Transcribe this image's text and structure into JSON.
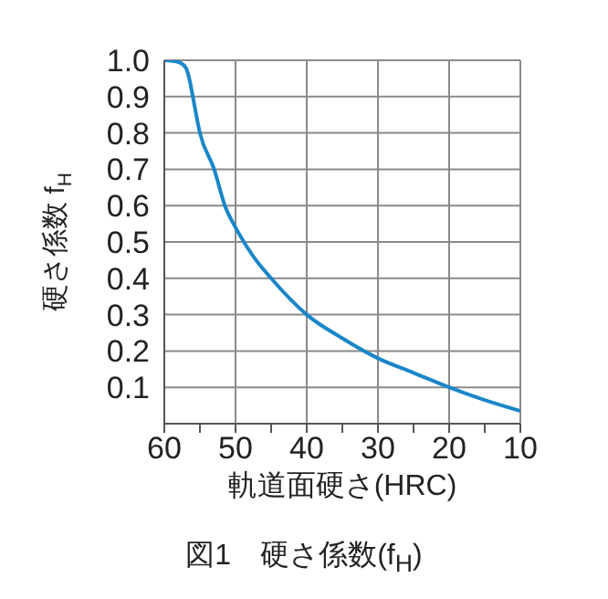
{
  "chart_data": {
    "type": "line",
    "title": "図1　硬さ係数(f$_{H}$)",
    "xlabel": "軌道面硬さ(HRC)",
    "ylabel": "硬さ係数 f$_{H}$",
    "x": [
      60,
      58,
      57,
      56.5,
      56,
      55,
      53,
      51.5,
      50,
      47.5,
      45,
      40,
      35,
      30,
      25,
      20,
      15,
      10
    ],
    "series": [
      {
        "color": "#1a86c8",
        "values": [
          1.0,
          0.995,
          0.98,
          0.95,
          0.9,
          0.8,
          0.7,
          0.6,
          0.54,
          0.46,
          0.4,
          0.3,
          0.235,
          0.18,
          0.14,
          0.1,
          0.065,
          0.035
        ]
      }
    ],
    "xlim": [
      60,
      10
    ],
    "xticks": [
      60,
      {
        "value": 55,
        "label": null
      },
      50,
      {
        "value": 45,
        "label": null
      },
      40,
      {
        "value": 35,
        "label": null
      },
      30,
      {
        "value": 25,
        "label": null
      },
      20,
      {
        "value": 15,
        "label": null
      },
      10
    ],
    "ylim": [
      0,
      1
    ],
    "yticks": [
      0.1,
      0.2,
      0.3,
      0.4,
      0.5,
      0.6,
      0.7,
      0.8,
      0.9,
      {
        "value": 1,
        "label": "1.0"
      }
    ],
    "grid": true,
    "legend": false,
    "marker": "none",
    "line_style": "solid"
  }
}
